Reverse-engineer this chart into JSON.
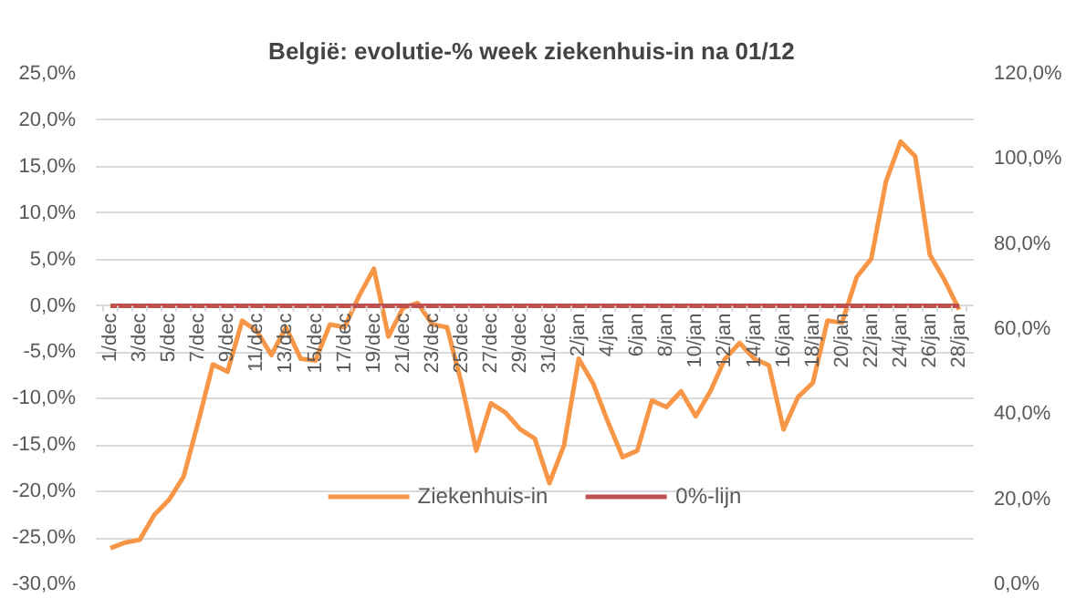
{
  "chart_data": {
    "type": "line",
    "title": "België: evolutie-%  week ziekenhuis-in na 01/12",
    "categories": [
      "1/dec",
      null,
      "3/dec",
      null,
      "5/dec",
      null,
      "7/dec",
      null,
      "9/dec",
      null,
      "11/dec",
      null,
      "13/dec",
      null,
      "15/dec",
      null,
      "17/dec",
      null,
      "19/dec",
      null,
      "21/dec",
      null,
      "23/dec",
      null,
      "25/dec",
      null,
      "27/dec",
      null,
      "29/dec",
      null,
      "31/dec",
      null,
      "2/jan",
      null,
      "4/jan",
      null,
      "6/jan",
      null,
      "8/jan",
      null,
      "10/jan",
      null,
      "12/jan",
      null,
      "14/jan",
      null,
      "16/jan",
      null,
      "18/jan",
      null,
      "20/jan",
      null,
      "22/jan",
      null,
      "24/jan",
      null,
      "26/jan",
      null,
      "28/jan"
    ],
    "series": [
      {
        "name": "Ziekenhuis-in",
        "color": "#f79646",
        "values": [
          -26.1,
          -25.5,
          -25.2,
          -22.5,
          -20.9,
          -18.4,
          -12.5,
          -6.3,
          -7.1,
          -1.6,
          -2.7,
          -5.3,
          -2.3,
          -5.7,
          -5.9,
          -2.0,
          -2.3,
          1.1,
          4.0,
          -3.3,
          -0.2,
          0.3,
          -2.0,
          -2.3,
          -8.4,
          -15.6,
          -10.5,
          -11.5,
          -13.3,
          -14.3,
          -19.1,
          -15.0,
          -5.7,
          -8.4,
          -12.5,
          -16.3,
          -15.6,
          -10.2,
          -10.9,
          -9.2,
          -11.9,
          -9.2,
          -5.7,
          -4.0,
          -5.7,
          -6.4,
          -13.3,
          -9.8,
          -8.3,
          -1.6,
          -1.8,
          3.1,
          5.1,
          13.4,
          17.7,
          16.1,
          5.5,
          2.8,
          -0.4
        ]
      },
      {
        "name": "0%-lijn",
        "color": "#c0504d",
        "values": [
          0,
          0,
          0,
          0,
          0,
          0,
          0,
          0,
          0,
          0,
          0,
          0,
          0,
          0,
          0,
          0,
          0,
          0,
          0,
          0,
          0,
          0,
          0,
          0,
          0,
          0,
          0,
          0,
          0,
          0,
          0,
          0,
          0,
          0,
          0,
          0,
          0,
          0,
          0,
          0,
          0,
          0,
          0,
          0,
          0,
          0,
          0,
          0,
          0,
          0,
          0,
          0,
          0,
          0,
          0,
          0,
          0,
          0,
          0
        ]
      }
    ],
    "ylim": [
      -30,
      25
    ],
    "yticks": [
      {
        "value": -30,
        "label": "-30,0%"
      },
      {
        "value": -25,
        "label": "-25,0%"
      },
      {
        "value": -20,
        "label": "-20,0%"
      },
      {
        "value": -15,
        "label": "-15,0%"
      },
      {
        "value": -10,
        "label": "-10,0%"
      },
      {
        "value": -5,
        "label": "-5,0%"
      },
      {
        "value": 0,
        "label": "0,0%"
      },
      {
        "value": 5,
        "label": "5,0%"
      },
      {
        "value": 10,
        "label": "10,0%"
      },
      {
        "value": 15,
        "label": "15,0%"
      },
      {
        "value": 20,
        "label": "20,0%"
      },
      {
        "value": 25,
        "label": "25,0%"
      }
    ],
    "y2lim": [
      0,
      120
    ],
    "y2ticks": [
      {
        "value": 0,
        "label": "0,0%"
      },
      {
        "value": 20,
        "label": "20,0%"
      },
      {
        "value": 40,
        "label": "40,0%"
      },
      {
        "value": 60,
        "label": "60,0%"
      },
      {
        "value": 80,
        "label": "80,0%"
      },
      {
        "value": 100,
        "label": "100,0%"
      },
      {
        "value": 120,
        "label": "120,0%"
      }
    ],
    "grid": "y",
    "legend": "bottom",
    "line_style": "solid",
    "marker": "none"
  }
}
